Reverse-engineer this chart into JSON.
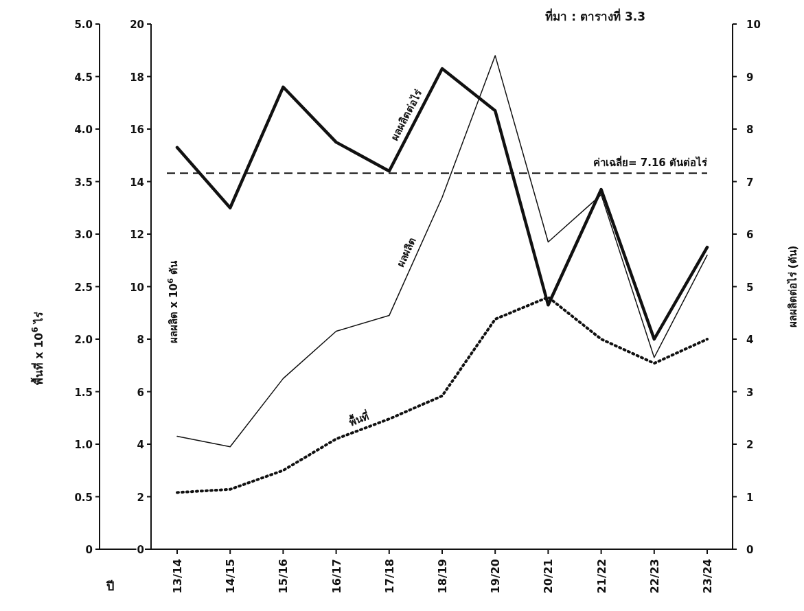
{
  "chart_data": {
    "type": "line",
    "categories": [
      "13/14",
      "14/15",
      "15/16",
      "16/17",
      "17/18",
      "18/19",
      "19/20",
      "20/21",
      "21/22",
      "22/23",
      "23/24"
    ],
    "xlabel": "ปี",
    "ylabel": "พื้นที่ x 10$^{6}$ ไร่",
    "y2label": "ผลผลิต x 10$^{6}$ ตัน",
    "y3label": "ผลผลิตต่อไร่ (ตัน)",
    "ylim": [
      0,
      5
    ],
    "yticks": [
      {
        "value": 0,
        "label": "0"
      },
      {
        "value": 0.5,
        "label": "0.5"
      },
      {
        "value": 1,
        "label": "1.0"
      },
      {
        "value": 1.5,
        "label": "1.5"
      },
      {
        "value": 2,
        "label": "2.0"
      },
      {
        "value": 2.5,
        "label": "2.5"
      },
      {
        "value": 3,
        "label": "3.0"
      },
      {
        "value": 3.5,
        "label": "3.5"
      },
      {
        "value": 4,
        "label": "4.0"
      },
      {
        "value": 4.5,
        "label": "4.5"
      },
      {
        "value": 5,
        "label": "5.0"
      }
    ],
    "y2lim": [
      0,
      20
    ],
    "y2ticks": [
      0,
      2,
      4,
      6,
      8,
      10,
      12,
      14,
      16,
      18,
      20
    ],
    "y3lim": [
      0,
      10
    ],
    "y3ticks": [
      0,
      1,
      2,
      3,
      4,
      5,
      6,
      7,
      8,
      9,
      10
    ],
    "series": [
      {
        "name": "พื้นที่",
        "color": "#111111",
        "axis": "y",
        "line_style": "dotted",
        "values": [
          0.54,
          0.57,
          0.75,
          1.05,
          1.24,
          1.46,
          2.19,
          2.4,
          2.0,
          1.77,
          2.0
        ]
      },
      {
        "name": "ผลผลิต",
        "color": "#111111",
        "axis": "y2",
        "line_style": "solid",
        "values": [
          4.3,
          3.9,
          6.5,
          8.3,
          8.9,
          13.4,
          18.8,
          11.7,
          13.5,
          7.3,
          11.2
        ]
      },
      {
        "name": "ผลผลิตต่อไร่",
        "color": "#111111",
        "axis": "y3",
        "line_style": "solid",
        "values": [
          7.65,
          6.5,
          8.8,
          7.75,
          7.2,
          9.15,
          8.35,
          4.65,
          6.85,
          4.0,
          5.75
        ]
      }
    ],
    "ref_lines": [
      {
        "axis": "y3",
        "value": 7.16,
        "label": "ค่าเฉลี่ย= 7.16 ตันต่อไร่",
        "line_style": "dashed",
        "color": "#111111"
      }
    ],
    "annotations": [
      "ที่มา : ตารางที่ 3.3"
    ]
  }
}
